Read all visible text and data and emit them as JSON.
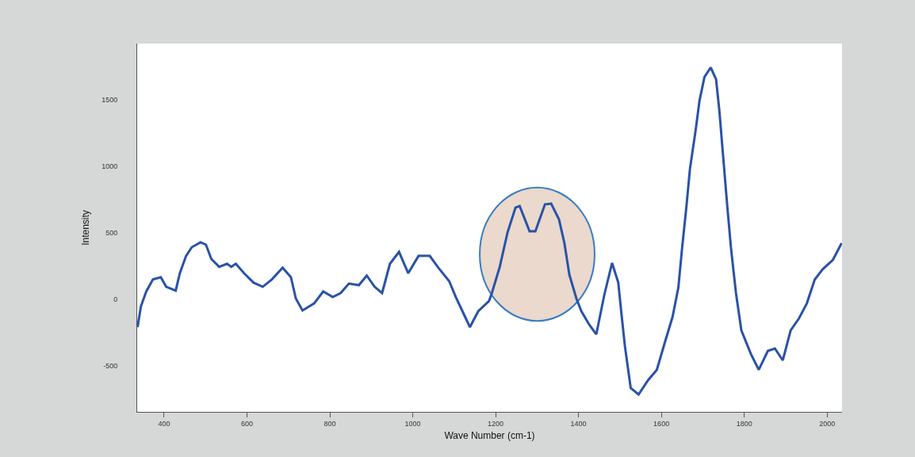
{
  "chart_data": {
    "type": "line",
    "xlabel": "Wave Number (cm-1)",
    "ylabel": "Intensity",
    "x": [
      336,
      344,
      357,
      373,
      392,
      405,
      428,
      438,
      453,
      467,
      488,
      501,
      514,
      533,
      552,
      562,
      573,
      593,
      616,
      638,
      660,
      686,
      706,
      718,
      734,
      762,
      784,
      807,
      826,
      846,
      870,
      889,
      908,
      926,
      945,
      967,
      989,
      1014,
      1041,
      1062,
      1088,
      1104,
      1120,
      1138,
      1158,
      1184,
      1191,
      1210,
      1229,
      1248,
      1258,
      1282,
      1296,
      1319,
      1334,
      1353,
      1366,
      1378,
      1395,
      1407,
      1426,
      1443,
      1462,
      1481,
      1496,
      1503,
      1512,
      1526,
      1545,
      1568,
      1589,
      1608,
      1627,
      1641,
      1650,
      1660,
      1669,
      1683,
      1692,
      1704,
      1719,
      1732,
      1740,
      1749,
      1759,
      1768,
      1780,
      1793,
      1816,
      1835,
      1857,
      1874,
      1893,
      1912,
      1932,
      1951,
      1970,
      1989,
      2014,
      2035
    ],
    "series": [
      {
        "color": "#2a52a6",
        "values": [
          -208,
          -52,
          60,
          150,
          167,
          95,
          66,
          197,
          327,
          393,
          429,
          411,
          304,
          245,
          268,
          245,
          268,
          197,
          126,
          95,
          150,
          239,
          167,
          6,
          -83,
          -30,
          60,
          18,
          48,
          119,
          107,
          179,
          95,
          48,
          268,
          357,
          197,
          327,
          327,
          238,
          137,
          18,
          -89,
          -208,
          -89,
          -12,
          48,
          245,
          506,
          690,
          702,
          512,
          512,
          714,
          720,
          601,
          423,
          185,
          6,
          -89,
          -190,
          -262,
          30,
          274,
          126,
          -89,
          -351,
          -666,
          -714,
          -607,
          -529,
          -327,
          -131,
          89,
          387,
          684,
          982,
          1279,
          1494,
          1672,
          1743,
          1654,
          1416,
          1077,
          702,
          387,
          48,
          -232,
          -410,
          -529,
          -387,
          -369,
          -458,
          -232,
          -143,
          -30,
          149,
          226,
          298,
          423
        ]
      }
    ],
    "xlim": [
      335,
      2036
    ],
    "xticks": [
      400,
      600,
      800,
      1000,
      1200,
      1400,
      1600,
      1800,
      2000
    ],
    "ylim": [
      -845,
      1923
    ],
    "yticks": [
      -500,
      0,
      500,
      1000,
      1500
    ],
    "grid": false,
    "marker": "none",
    "line_style": "solid"
  }
}
